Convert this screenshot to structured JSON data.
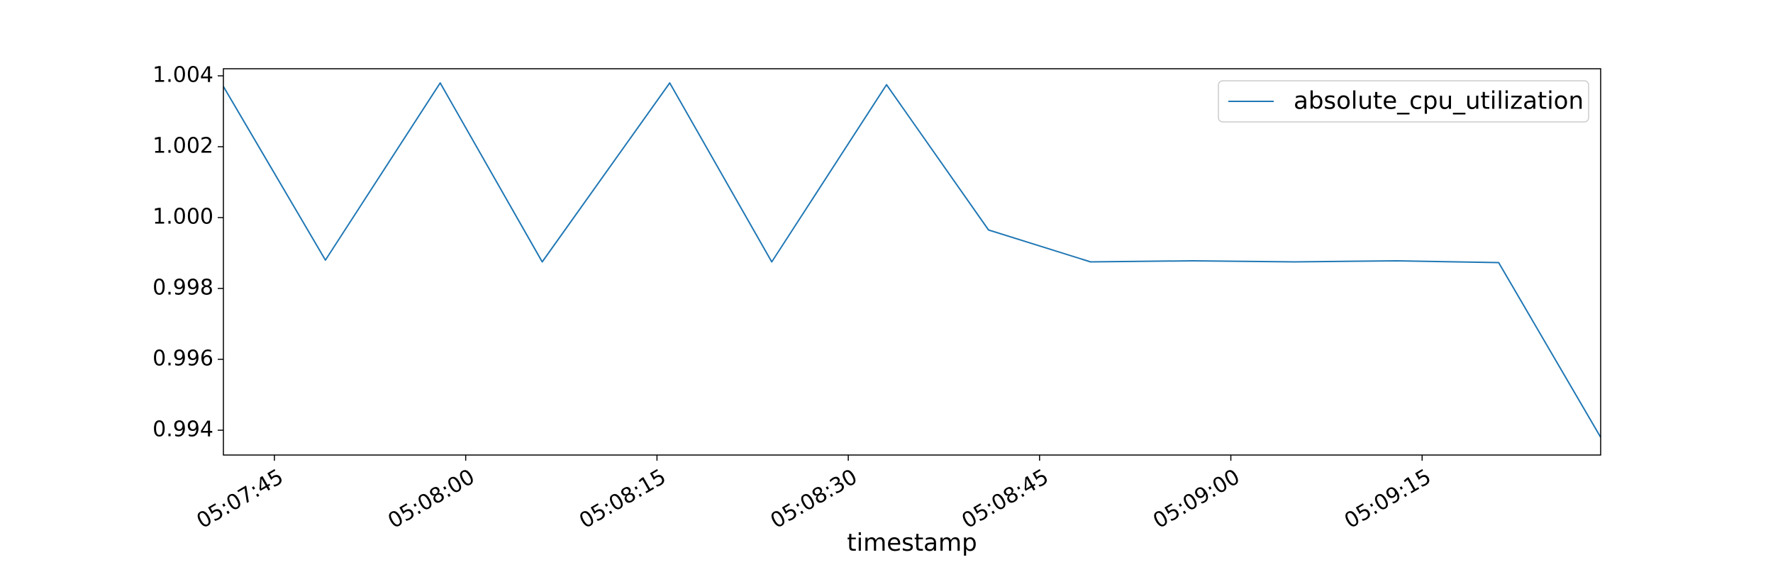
{
  "chart_data": {
    "type": "line",
    "title": "",
    "xlabel": "timestamp",
    "ylabel": "",
    "grid": false,
    "legend_position": "top-right",
    "line_color": "#1f77b4",
    "x_range": [
      "05:07:41",
      "05:09:29"
    ],
    "y_range": [
      0.9933,
      1.0042
    ],
    "x_ticks": [
      "05:07:45",
      "05:08:00",
      "05:08:15",
      "05:08:30",
      "05:08:45",
      "05:09:00",
      "05:09:15"
    ],
    "y_ticks": [
      "0.994",
      "0.996",
      "0.998",
      "1.000",
      "1.002",
      "1.004"
    ],
    "series": [
      {
        "name": "absolute_cpu_utilization",
        "x": [
          "05:07:41",
          "05:07:49",
          "05:07:58",
          "05:08:06",
          "05:08:16",
          "05:08:24",
          "05:08:33",
          "05:08:41",
          "05:08:49",
          "05:08:57",
          "05:09:05",
          "05:09:13",
          "05:09:21",
          "05:09:29"
        ],
        "y": [
          1.0037,
          0.9988,
          1.0038,
          0.99875,
          1.0038,
          0.99875,
          1.00375,
          0.99965,
          0.99875,
          0.99878,
          0.99875,
          0.99878,
          0.99873,
          0.9938
        ]
      }
    ]
  }
}
